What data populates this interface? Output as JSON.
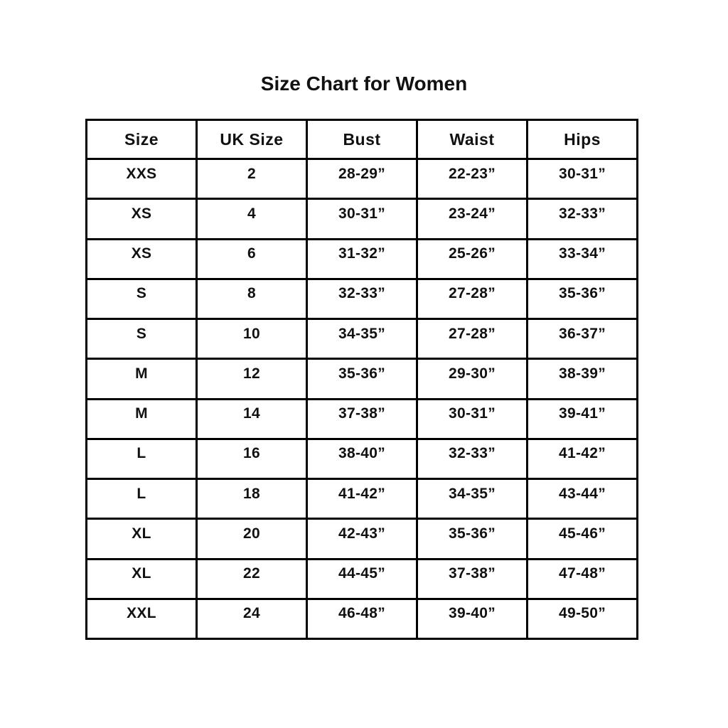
{
  "page": {
    "title": "Size Chart for Women",
    "background_color": "#ffffff",
    "text_color": "#111111",
    "border_color": "#000000"
  },
  "table": {
    "headers": [
      "Size",
      "UK Size",
      "Bust",
      "Waist",
      "Hips"
    ],
    "rows": [
      [
        "XXS",
        "2",
        "28-29”",
        "22-23”",
        "30-31”"
      ],
      [
        "XS",
        "4",
        "30-31”",
        "23-24”",
        "32-33”"
      ],
      [
        "XS",
        "6",
        "31-32”",
        "25-26”",
        "33-34”"
      ],
      [
        "S",
        "8",
        "32-33”",
        "27-28”",
        "35-36”"
      ],
      [
        "S",
        "10",
        "34-35”",
        "27-28”",
        "36-37”"
      ],
      [
        "M",
        "12",
        "35-36”",
        "29-30”",
        "38-39”"
      ],
      [
        "M",
        "14",
        "37-38”",
        "30-31”",
        "39-41”"
      ],
      [
        "L",
        "16",
        "38-40”",
        "32-33”",
        "41-42”"
      ],
      [
        "L",
        "18",
        "41-42”",
        "34-35”",
        "43-44”"
      ],
      [
        "XL",
        "20",
        "42-43”",
        "35-36”",
        "45-46”"
      ],
      [
        "XL",
        "22",
        "44-45”",
        "37-38”",
        "47-48”"
      ],
      [
        "XXL",
        "24",
        "46-48”",
        "39-40”",
        "49-50”"
      ]
    ]
  }
}
